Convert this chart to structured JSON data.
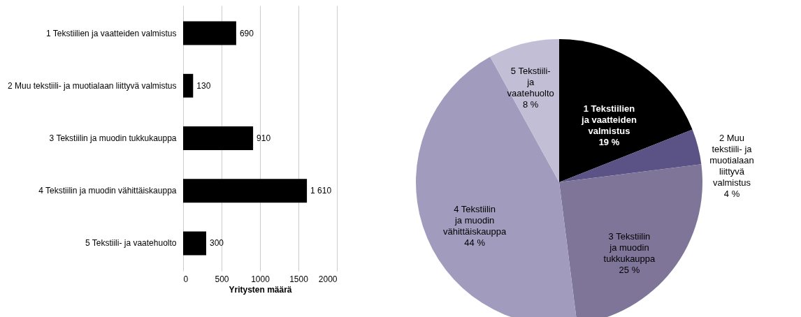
{
  "chart_data": [
    {
      "type": "bar",
      "orientation": "horizontal",
      "xlabel": "Yritysten määrä",
      "categories": [
        "1 Tekstiilien ja vaatteiden valmistus",
        "2 Muu tekstiili- ja muotialaan liittyvä valmistus",
        "3 Tekstiilin ja muodin tukkukauppa",
        "4 Tekstiilin ja muodin vähittäiskauppa",
        "5 Tekstiili- ja vaatehuolto"
      ],
      "values": [
        690,
        130,
        910,
        1610,
        300
      ],
      "value_labels": [
        "690",
        "130",
        "910",
        "1 610",
        "300"
      ],
      "color": "#000000",
      "xlim": [
        0,
        2000
      ],
      "xticks": [
        0,
        500,
        1000,
        1500,
        2000
      ],
      "grid": "x"
    },
    {
      "type": "pie",
      "categories": [
        "1 Tekstiilien ja vaatteiden valmistus",
        "2 Muu tekstiili- ja muotialaan liittyvä valmistus",
        "3 Tekstiilin ja muodin tukkukauppa",
        "4 Tekstiilin ja muodin vähittäiskauppa",
        "5 Tekstiili- ja vaatehuolto"
      ],
      "values": [
        19,
        4,
        25,
        44,
        8
      ],
      "value_labels": [
        "19 %",
        "4 %",
        "25 %",
        "44 %",
        "8 %"
      ],
      "colors": [
        "#000000",
        "#5b5386",
        "#7e7599",
        "#a19bbd",
        "#c2bed6"
      ]
    }
  ]
}
